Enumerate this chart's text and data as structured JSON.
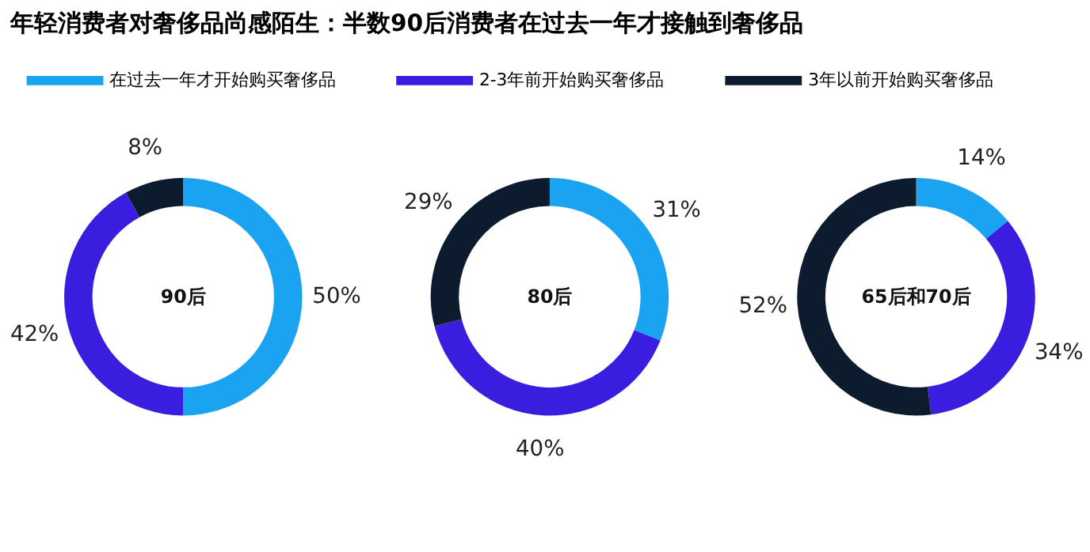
{
  "chart_data": [
    {
      "type": "donut",
      "title": "年轻消费者对奢侈品尚感陌生：半数90后消费者在过去一年才接触到奢侈品",
      "legend": "top",
      "categories": [
        "在过去一年才开始购买奢侈品",
        "2-3年前开始购买奢侈品",
        "3年以前开始购买奢侈品"
      ],
      "values": [
        50,
        42,
        8
      ],
      "value_labels": [
        "50%",
        "42%",
        "8%"
      ],
      "colors": [
        "#1aa3f0",
        "#3a1ee0",
        "#0d1b2e"
      ],
      "annotations": [
        "90后"
      ]
    },
    {
      "type": "donut",
      "categories": [
        null,
        null,
        null
      ],
      "values": [
        31,
        40,
        29
      ],
      "value_labels": [
        "31%",
        "40%",
        "29%"
      ],
      "colors": [
        "#1aa3f0",
        "#3a1ee0",
        "#0d1b2e"
      ],
      "annotations": [
        "80后"
      ]
    },
    {
      "type": "donut",
      "categories": [
        null,
        null,
        null
      ],
      "values": [
        14,
        34,
        52
      ],
      "value_labels": [
        "14%",
        "34%",
        "52%"
      ],
      "colors": [
        "#1aa3f0",
        "#3a1ee0",
        "#0d1b2e"
      ],
      "annotations": [
        "65后和70后"
      ]
    }
  ]
}
